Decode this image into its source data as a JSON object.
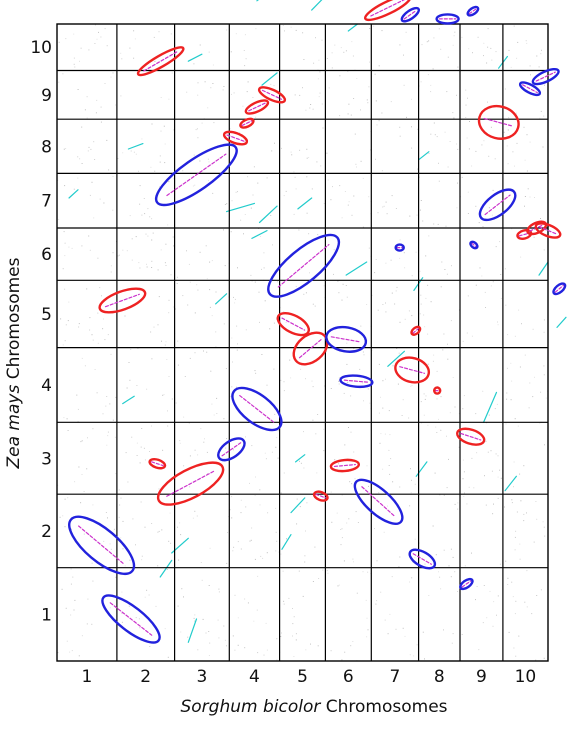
{
  "chart_data": {
    "type": "scatter",
    "subtype": "synteny-dotplot",
    "title": "",
    "x_axis": {
      "label_italic": "Sorghum bicolor",
      "label_plain": "Chromosomes",
      "chromosomes": [
        "1",
        "2",
        "3",
        "4",
        "5",
        "6",
        "7",
        "8",
        "9",
        "10"
      ],
      "relative_lengths": [
        81,
        78,
        74,
        68,
        62,
        62,
        64,
        56,
        58,
        61
      ]
    },
    "y_axis": {
      "label_italic": "Zea mays",
      "label_plain": "Chromosomes",
      "chromosomes": [
        "1",
        "2",
        "3",
        "4",
        "5",
        "6",
        "7",
        "8",
        "9",
        "10"
      ],
      "relative_lengths": [
        301,
        237,
        232,
        241,
        217,
        169,
        176,
        175,
        157,
        150
      ]
    },
    "colors": {
      "red_block": "#ee2222",
      "blue_block": "#2222dd",
      "inner_dots": "#cc33cc",
      "minor_synteny": "#22cccc",
      "noise": "#9a9a9a"
    },
    "syntenic_blocks": [
      {
        "color": "red",
        "x": [
          1.55,
          1.97
        ],
        "y": [
          9.05,
          9.35
        ],
        "angle": -30,
        "len": 52,
        "wid": 11
      },
      {
        "color": "red",
        "x": [
          6.1,
          6.6
        ],
        "y": [
          10.05,
          10.65
        ],
        "angle": -26,
        "len": 50,
        "wid": 12
      },
      {
        "color": "blue",
        "x": [
          6.7,
          6.95
        ],
        "y": [
          10.05,
          10.35
        ],
        "angle": -35,
        "len": 20,
        "wid": 8
      },
      {
        "color": "blue",
        "x": [
          7.5,
          7.9
        ],
        "y": [
          10.02,
          10.2
        ],
        "angle": 0,
        "len": 22,
        "wid": 9
      },
      {
        "color": "blue",
        "x": [
          8.2,
          8.4
        ],
        "y": [
          10.15,
          10.4
        ],
        "angle": -35,
        "len": 12,
        "wid": 6
      },
      {
        "color": "red",
        "x": [
          3.7,
          4.0
        ],
        "y": [
          8.4,
          8.6
        ],
        "angle": 25,
        "len": 28,
        "wid": 10
      },
      {
        "color": "red",
        "x": [
          3.4,
          3.7
        ],
        "y": [
          8.15,
          8.35
        ],
        "angle": -25,
        "len": 24,
        "wid": 9
      },
      {
        "color": "red",
        "x": [
          3.25,
          3.45
        ],
        "y": [
          7.85,
          8.0
        ],
        "angle": -25,
        "len": 14,
        "wid": 7
      },
      {
        "color": "red",
        "x": [
          2.95,
          3.3
        ],
        "y": [
          7.55,
          7.75
        ],
        "angle": 20,
        "len": 24,
        "wid": 10
      },
      {
        "color": "blue",
        "x": [
          1.95,
          2.85
        ],
        "y": [
          6.5,
          7.45
        ],
        "angle": -35,
        "len": 96,
        "wid": 30
      },
      {
        "color": "blue",
        "x": [
          9.45,
          9.75
        ],
        "y": [
          8.55,
          8.7
        ],
        "angle": 28,
        "len": 22,
        "wid": 8
      },
      {
        "color": "blue",
        "x": [
          9.75,
          10.15
        ],
        "y": [
          8.75,
          9.0
        ],
        "angle": -25,
        "len": 28,
        "wid": 10
      },
      {
        "color": "red",
        "x": [
          8.65,
          9.15
        ],
        "y": [
          7.7,
          8.2
        ],
        "angle": 15,
        "len": 40,
        "wid": 32
      },
      {
        "color": "blue",
        "x": [
          8.65,
          9.1
        ],
        "y": [
          6.2,
          6.65
        ],
        "angle": -38,
        "len": 42,
        "wid": 20
      },
      {
        "color": "red",
        "x": [
          9.35,
          9.6
        ],
        "y": [
          5.8,
          5.95
        ],
        "angle": -15,
        "len": 14,
        "wid": 8
      },
      {
        "color": "red",
        "x": [
          9.6,
          9.9
        ],
        "y": [
          5.9,
          6.1
        ],
        "angle": -25,
        "len": 20,
        "wid": 10
      },
      {
        "color": "red",
        "x": [
          9.8,
          10.2
        ],
        "y": [
          5.85,
          6.05
        ],
        "angle": 22,
        "len": 26,
        "wid": 11
      },
      {
        "color": "blue",
        "x": [
          6.5,
          6.7
        ],
        "y": [
          5.55,
          5.7
        ],
        "angle": 0,
        "len": 8,
        "wid": 6
      },
      {
        "color": "blue",
        "x": [
          8.25,
          8.4
        ],
        "y": [
          5.6,
          5.75
        ],
        "angle": 40,
        "len": 8,
        "wid": 5
      },
      {
        "color": "blue",
        "x": [
          4.1,
          4.95
        ],
        "y": [
          4.85,
          5.75
        ],
        "angle": -40,
        "len": 88,
        "wid": 32
      },
      {
        "color": "blue",
        "x": [
          10.15,
          10.35
        ],
        "y": [
          4.75,
          5.0
        ],
        "angle": -40,
        "len": 14,
        "wid": 7
      },
      {
        "color": "red",
        "x": [
          0.75,
          1.45
        ],
        "y": [
          4.55,
          4.85
        ],
        "angle": -20,
        "len": 48,
        "wid": 18
      },
      {
        "color": "red",
        "x": [
          4.05,
          4.55
        ],
        "y": [
          4.25,
          4.45
        ],
        "angle": 28,
        "len": 34,
        "wid": 17
      },
      {
        "color": "red",
        "x": [
          4.4,
          4.95
        ],
        "y": [
          3.75,
          4.25
        ],
        "angle": -40,
        "len": 38,
        "wid": 26
      },
      {
        "color": "blue",
        "x": [
          5.15,
          5.75
        ],
        "y": [
          3.95,
          4.3
        ],
        "angle": 10,
        "len": 40,
        "wid": 24
      },
      {
        "color": "blue",
        "x": [
          5.45,
          5.9
        ],
        "y": [
          3.5,
          3.6
        ],
        "angle": 5,
        "len": 32,
        "wid": 11
      },
      {
        "color": "red",
        "x": [
          6.75,
          7.15
        ],
        "y": [
          4.15,
          4.35
        ],
        "angle": -40,
        "len": 10,
        "wid": 6
      },
      {
        "color": "red",
        "x": [
          6.55,
          7.2
        ],
        "y": [
          3.5,
          3.9
        ],
        "angle": 15,
        "len": 34,
        "wid": 24
      },
      {
        "color": "red",
        "x": [
          7.35,
          7.55
        ],
        "y": [
          3.35,
          3.5
        ],
        "angle": 0,
        "len": 6,
        "wid": 6
      },
      {
        "color": "blue",
        "x": [
          3.15,
          3.95
        ],
        "y": [
          2.85,
          3.5
        ],
        "angle": 38,
        "len": 58,
        "wid": 28
      },
      {
        "color": "red",
        "x": [
          8.0,
          8.5
        ],
        "y": [
          2.7,
          2.9
        ],
        "angle": 18,
        "len": 28,
        "wid": 14
      },
      {
        "color": "blue",
        "x": [
          2.8,
          3.3
        ],
        "y": [
          2.45,
          2.8
        ],
        "angle": -35,
        "len": 30,
        "wid": 16
      },
      {
        "color": "red",
        "x": [
          1.5,
          1.9
        ],
        "y": [
          2.35,
          2.5
        ],
        "angle": 18,
        "len": 16,
        "wid": 8
      },
      {
        "color": "red",
        "x": [
          1.75,
          2.85
        ],
        "y": [
          1.85,
          2.45
        ],
        "angle": -28,
        "len": 72,
        "wid": 28
      },
      {
        "color": "red",
        "x": [
          5.15,
          5.7
        ],
        "y": [
          2.35,
          2.45
        ],
        "angle": -5,
        "len": 28,
        "wid": 11
      },
      {
        "color": "red",
        "x": [
          4.75,
          5.05
        ],
        "y": [
          1.9,
          2.05
        ],
        "angle": 20,
        "len": 14,
        "wid": 8
      },
      {
        "color": "blue",
        "x": [
          5.75,
          6.55
        ],
        "y": [
          1.55,
          2.25
        ],
        "angle": 42,
        "len": 60,
        "wid": 24
      },
      {
        "color": "blue",
        "x": [
          6.85,
          7.35
        ],
        "y": [
          0.95,
          1.3
        ],
        "angle": 30,
        "len": 28,
        "wid": 14
      },
      {
        "color": "blue",
        "x": [
          8.0,
          8.3
        ],
        "y": [
          0.75,
          0.9
        ],
        "angle": -35,
        "len": 14,
        "wid": 7
      },
      {
        "color": "blue",
        "x": [
          0.25,
          1.25
        ],
        "y": [
          0.85,
          1.8
        ],
        "angle": 40,
        "len": 80,
        "wid": 32
      },
      {
        "color": "blue",
        "x": [
          0.75,
          1.75
        ],
        "y": [
          0.05,
          0.85
        ],
        "angle": 38,
        "len": 70,
        "wid": 24
      }
    ],
    "minor_segments": [
      {
        "x": [
          2.95,
          3.5
        ],
        "y": [
          6.3,
          6.45
        ]
      },
      {
        "x": [
          3.6,
          3.95
        ],
        "y": [
          6.1,
          6.4
        ]
      },
      {
        "x": [
          4.4,
          4.7
        ],
        "y": [
          6.35,
          6.55
        ]
      },
      {
        "x": [
          0.2,
          0.35
        ],
        "y": [
          6.55,
          6.7
        ]
      },
      {
        "x": [
          1.2,
          1.45
        ],
        "y": [
          7.45,
          7.55
        ]
      },
      {
        "x": [
          5.45,
          5.9
        ],
        "y": [
          5.1,
          5.35
        ]
      },
      {
        "x": [
          9.8,
          10.0
        ],
        "y": [
          5.1,
          5.35
        ]
      },
      {
        "x": [
          10.2,
          10.4
        ],
        "y": [
          4.3,
          4.45
        ]
      },
      {
        "x": [
          6.35,
          6.7
        ],
        "y": [
          3.75,
          3.95
        ]
      },
      {
        "x": [
          8.55,
          8.85
        ],
        "y": [
          3.0,
          3.4
        ]
      },
      {
        "x": [
          2.75,
          2.95
        ],
        "y": [
          4.65,
          4.8
        ]
      },
      {
        "x": [
          3.45,
          3.75
        ],
        "y": [
          5.8,
          5.95
        ]
      },
      {
        "x": [
          4.25,
          4.55
        ],
        "y": [
          1.75,
          1.95
        ]
      },
      {
        "x": [
          4.35,
          4.55
        ],
        "y": [
          2.45,
          2.55
        ]
      },
      {
        "x": [
          1.75,
          1.95
        ],
        "y": [
          0.9,
          1.1
        ]
      },
      {
        "x": [
          2.25,
          2.4
        ],
        "y": [
          0.2,
          0.45
        ]
      },
      {
        "x": [
          1.95,
          2.25
        ],
        "y": [
          1.2,
          1.4
        ]
      },
      {
        "x": [
          3.65,
          3.95
        ],
        "y": [
          8.7,
          8.95
        ]
      },
      {
        "x": [
          2.25,
          2.5
        ],
        "y": [
          9.2,
          9.35
        ]
      },
      {
        "x": [
          4.7,
          4.95
        ],
        "y": [
          10.3,
          10.55
        ]
      },
      {
        "x": [
          3.55,
          3.8
        ],
        "y": [
          10.5,
          10.7
        ]
      },
      {
        "x": [
          5.5,
          5.7
        ],
        "y": [
          9.85,
          10.0
        ]
      },
      {
        "x": [
          8.9,
          9.1
        ],
        "y": [
          9.05,
          9.3
        ]
      },
      {
        "x": [
          7.0,
          7.25
        ],
        "y": [
          7.25,
          7.4
        ]
      },
      {
        "x": [
          6.95,
          7.2
        ],
        "y": [
          2.25,
          2.45
        ]
      },
      {
        "x": [
          9.05,
          9.3
        ],
        "y": [
          2.05,
          2.25
        ]
      },
      {
        "x": [
          1.1,
          1.3
        ],
        "y": [
          3.25,
          3.35
        ]
      },
      {
        "x": [
          6.9,
          7.1
        ],
        "y": [
          4.85,
          5.05
        ]
      },
      {
        "x": [
          4.05,
          4.25
        ],
        "y": [
          1.25,
          1.45
        ]
      }
    ]
  }
}
